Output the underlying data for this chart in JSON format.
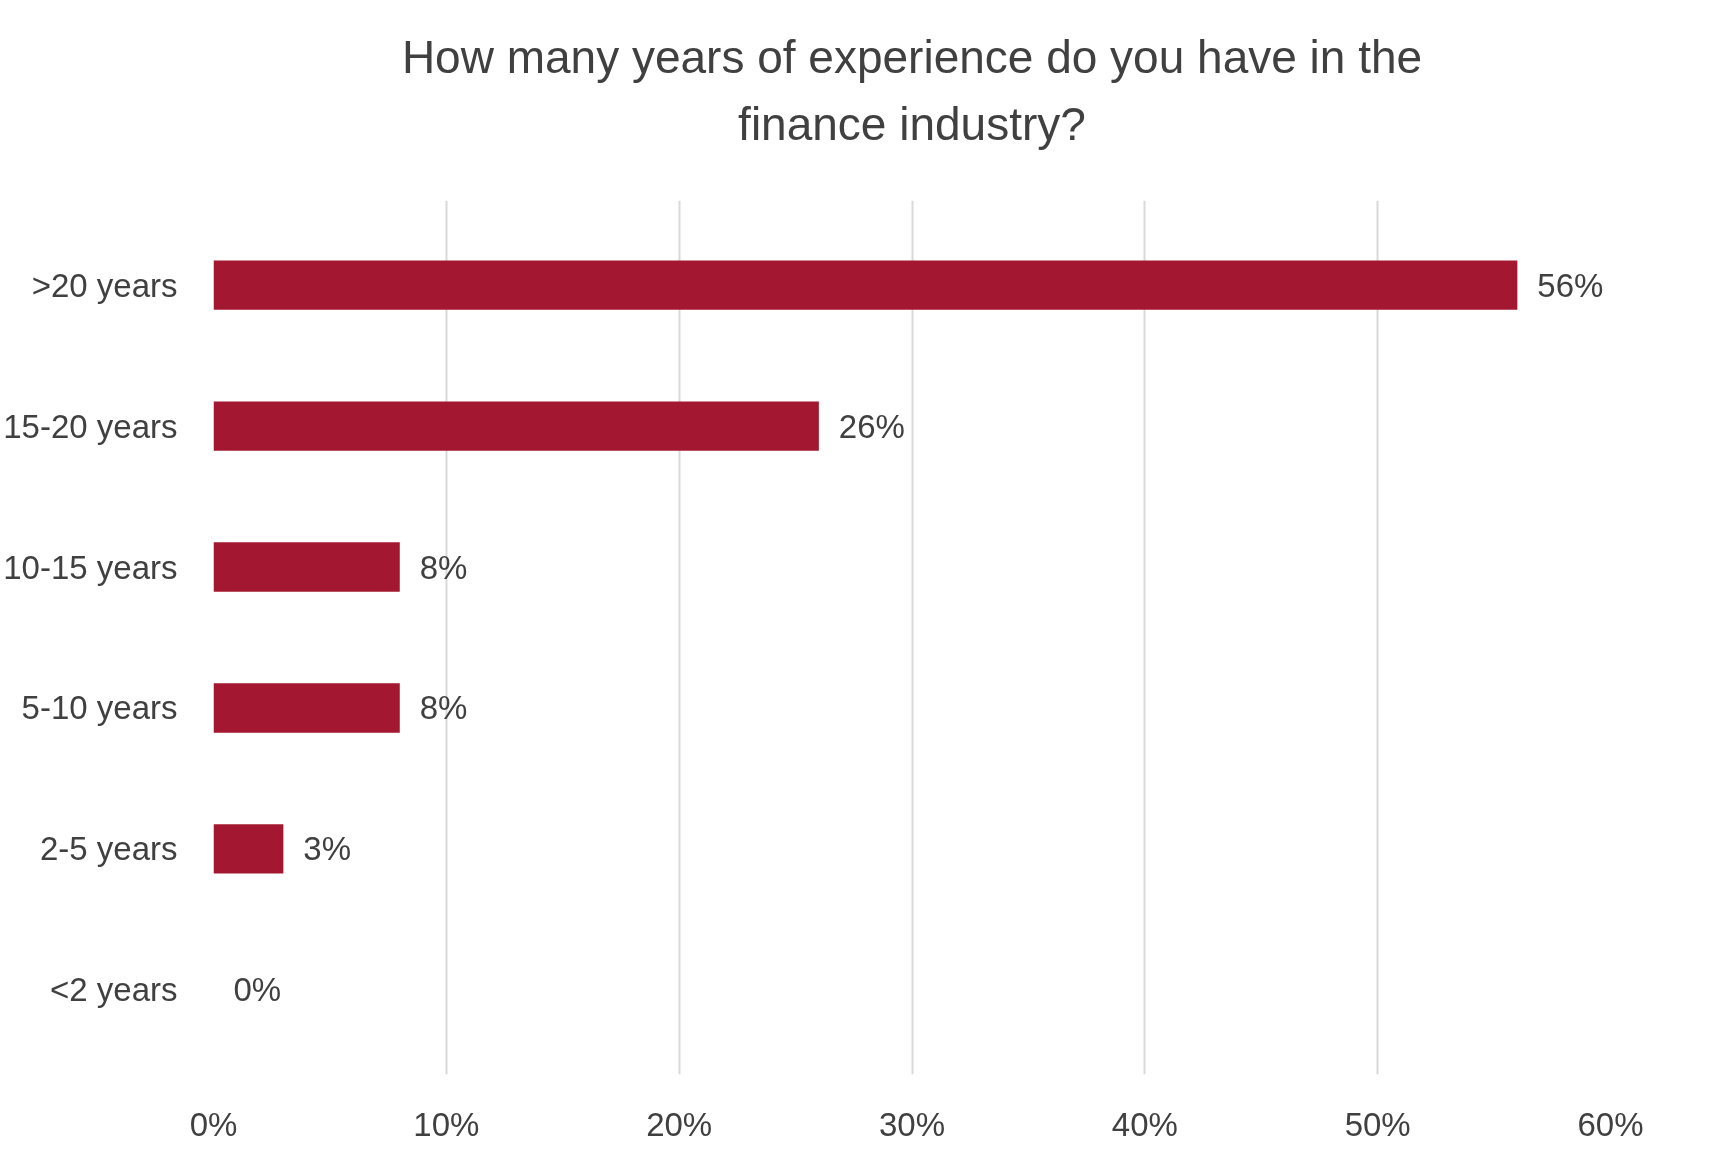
{
  "chart_data": {
    "type": "bar",
    "orientation": "horizontal",
    "title": "How many years of experience do you have in the finance industry?",
    "categories": [
      ">20 years",
      "15-20 years",
      "10-15 years",
      "5-10 years",
      "2-5 years",
      "<2 years"
    ],
    "values": [
      56,
      26,
      8,
      8,
      3,
      0
    ],
    "value_labels": [
      "56%",
      "26%",
      "8%",
      "8%",
      "3%",
      "0%"
    ],
    "color": "#a31830",
    "xlim": [
      0,
      60
    ],
    "xticks": [
      {
        "value": 0,
        "label": "0%"
      },
      {
        "value": 10,
        "label": "10%"
      },
      {
        "value": 20,
        "label": "20%"
      },
      {
        "value": 30,
        "label": "30%"
      },
      {
        "value": 40,
        "label": "40%"
      },
      {
        "value": 50,
        "label": "50%"
      },
      {
        "value": 60,
        "label": "60%"
      }
    ],
    "grid": "x"
  }
}
